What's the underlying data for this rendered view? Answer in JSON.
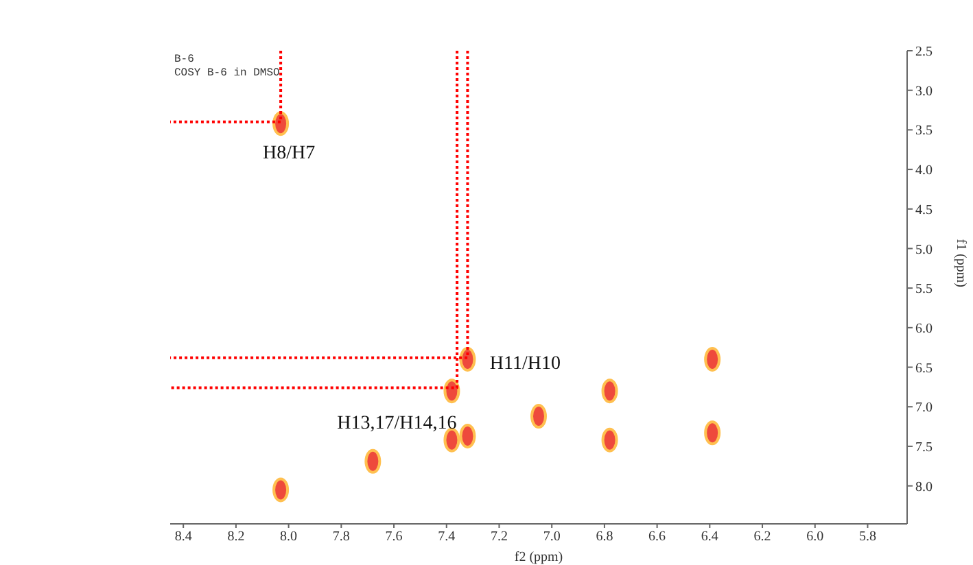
{
  "chart_data": [
    {
      "type": "scatter",
      "xlabel": "f2 (ppm)",
      "ylabel": "f1 (ppm)",
      "xlim": [
        8.45,
        5.65
      ],
      "ylim": [
        8.48,
        2.5
      ],
      "xticks": [
        8.4,
        8.2,
        {
          "value": 8,
          "label": "8.0"
        },
        7.8,
        7.6,
        7.4,
        7.2,
        {
          "value": 7,
          "label": "7.0"
        },
        6.8,
        6.6,
        6.4,
        6.2,
        {
          "value": 6,
          "label": "6.0"
        },
        5.8
      ],
      "yticks": [
        2.5,
        {
          "value": 3,
          "label": "3.0"
        },
        3.5,
        {
          "value": 4,
          "label": "4.0"
        },
        4.5,
        {
          "value": 5,
          "label": "5.0"
        },
        5.5,
        {
          "value": 6,
          "label": "6.0"
        },
        6.5,
        {
          "value": 7,
          "label": "7.0"
        },
        7.5,
        {
          "value": 8,
          "label": "8.0"
        }
      ],
      "annotations": [
        "B-6",
        "COSY B-6 in DMSO",
        {
          "text": "H8/H7",
          "x": 8.03,
          "y": 3.42
        },
        {
          "text": "H11/H10",
          "x": 7.32,
          "y": 6.4
        },
        {
          "text": "H13,17/H14,16",
          "x": 7.38,
          "y": 6.8
        }
      ],
      "series": [
        {
          "type": "scatter",
          "marker": "circle",
          "color": "#ee4a3c",
          "x": [
            8.03,
            7.32,
            7.38,
            7.05,
            7.38,
            7.32,
            7.68,
            8.03,
            6.78,
            6.78,
            6.39,
            6.39
          ],
          "values": [
            3.42,
            6.4,
            6.8,
            7.12,
            7.42,
            7.37,
            7.69,
            8.05,
            6.8,
            7.42,
            6.4,
            7.33
          ]
        },
        {
          "type": "line",
          "marker": "none",
          "line_style": "dotted",
          "color": "#ff0000",
          "x": [
            8.03,
            8.03,
            8.45
          ],
          "values": [
            2.5,
            3.4,
            3.4
          ]
        },
        {
          "type": "line",
          "marker": "none",
          "line_style": "dotted",
          "color": "#ff0000",
          "x": [
            7.32,
            7.32,
            8.45
          ],
          "values": [
            2.5,
            6.38,
            6.38
          ]
        },
        {
          "type": "line",
          "marker": "none",
          "line_style": "dotted",
          "color": "#ff0000",
          "x": [
            7.36,
            7.36,
            8.45
          ],
          "values": [
            2.5,
            6.76,
            6.76
          ]
        }
      ]
    }
  ]
}
